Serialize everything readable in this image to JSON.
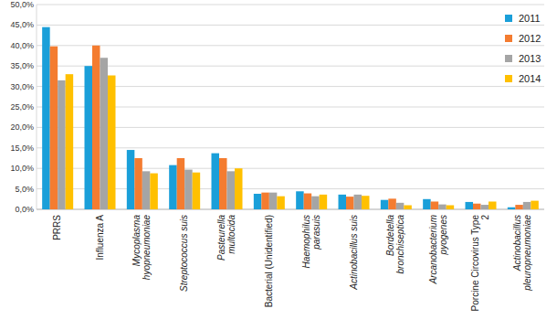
{
  "chart_data": {
    "type": "bar",
    "categories": [
      "PRRS",
      "Influenza A",
      "Mycoplasma hyopneumoniae",
      "Streptococcus suis",
      "Pasteurella multocida",
      "Bacterial (Unidentified)",
      "Haemophilus parasuis",
      "Actinobacillus suis",
      "Bordetella bronchiseptica",
      "Arcanobacterium pyogenes",
      "Porcine Circovirus Type 2",
      "Actinobacillus pleuropneumoniae"
    ],
    "series": [
      {
        "name": "2011",
        "color": "#1a9fd9",
        "values": [
          44.5,
          35.0,
          14.5,
          10.8,
          13.7,
          3.8,
          4.4,
          3.6,
          2.3,
          2.5,
          1.8,
          0.5
        ]
      },
      {
        "name": "2012",
        "color": "#f47c30",
        "values": [
          39.8,
          40.0,
          12.5,
          12.5,
          12.5,
          4.1,
          3.9,
          3.1,
          2.6,
          1.9,
          1.4,
          1.1
        ]
      },
      {
        "name": "2013",
        "color": "#a5a5a5",
        "values": [
          31.5,
          37.0,
          9.3,
          9.7,
          9.3,
          4.1,
          3.2,
          3.6,
          1.6,
          1.2,
          1.1,
          1.8
        ]
      },
      {
        "name": "2014",
        "color": "#ffc000",
        "values": [
          33.0,
          32.7,
          8.8,
          9.0,
          10.0,
          3.2,
          3.6,
          3.3,
          1.0,
          1.0,
          1.9,
          2.1
        ]
      }
    ],
    "ylim": [
      0,
      50
    ],
    "yticks": [
      {
        "value": 0,
        "label": "0,0%"
      },
      {
        "value": 5,
        "label": "5,0%"
      },
      {
        "value": 10,
        "label": "10,0%"
      },
      {
        "value": 15,
        "label": "15,0%"
      },
      {
        "value": 20,
        "label": "20,0%"
      },
      {
        "value": 25,
        "label": "25,0%"
      },
      {
        "value": 30,
        "label": "30,0%"
      },
      {
        "value": 35,
        "label": "35,0%"
      },
      {
        "value": 40,
        "label": "40,0%"
      },
      {
        "value": 45,
        "label": "45,0%"
      },
      {
        "value": 50,
        "label": "50,0%"
      }
    ],
    "grid": true,
    "legend": "top-right"
  }
}
